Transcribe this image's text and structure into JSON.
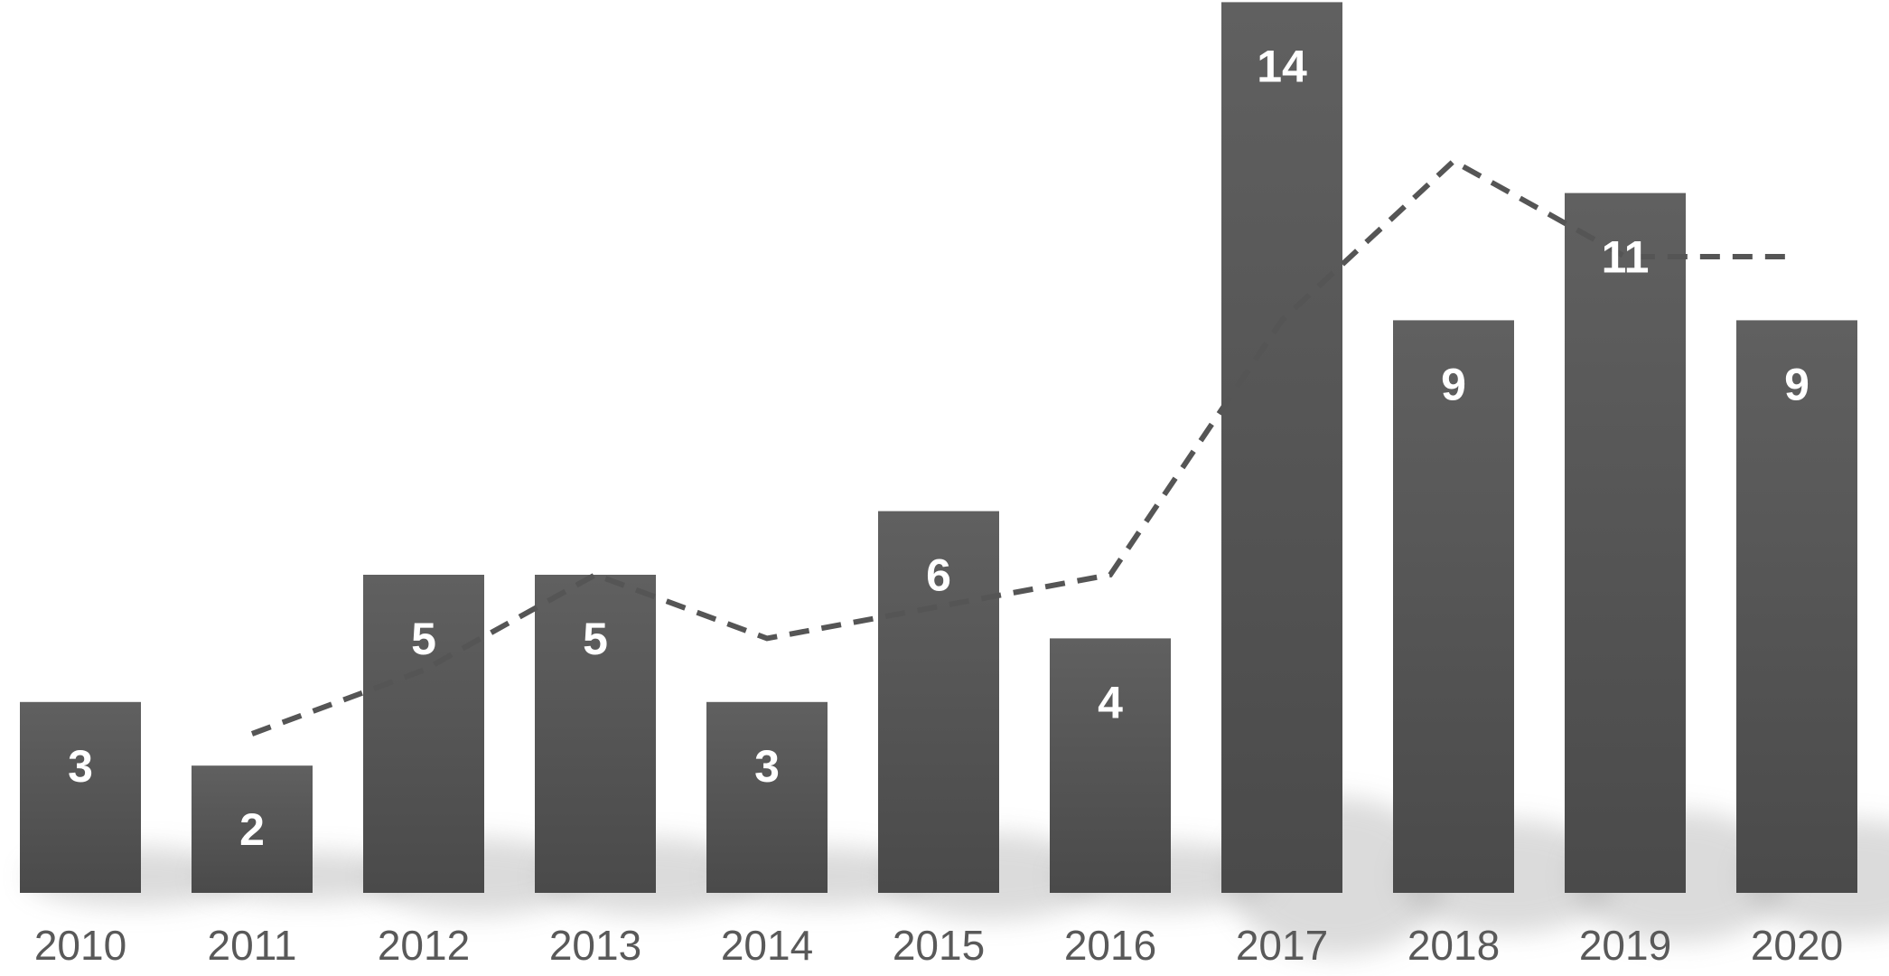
{
  "chart_data": {
    "type": "bar",
    "categories": [
      "2010",
      "2011",
      "2012",
      "2013",
      "2014",
      "2015",
      "2016",
      "2017",
      "2018",
      "2019",
      "2020"
    ],
    "series": [
      {
        "type": "bar",
        "values": [
          3,
          2,
          5,
          5,
          3,
          6,
          4,
          14,
          9,
          11,
          9
        ],
        "data_labels": [
          "3",
          "2",
          "5",
          "5",
          "3",
          "6",
          "4",
          "14",
          "9",
          "11",
          "9"
        ],
        "color": "#595959"
      },
      {
        "type": "line",
        "style": "dashed",
        "trend": "2-period moving average",
        "values": [
          null,
          2.5,
          3.5,
          5,
          4,
          4.5,
          5,
          9,
          11.5,
          10,
          10
        ],
        "color": "#555555"
      }
    ],
    "title": "",
    "xlabel": "",
    "ylabel": "",
    "ylim": [
      0,
      14
    ],
    "grid": false,
    "legend": "none"
  }
}
